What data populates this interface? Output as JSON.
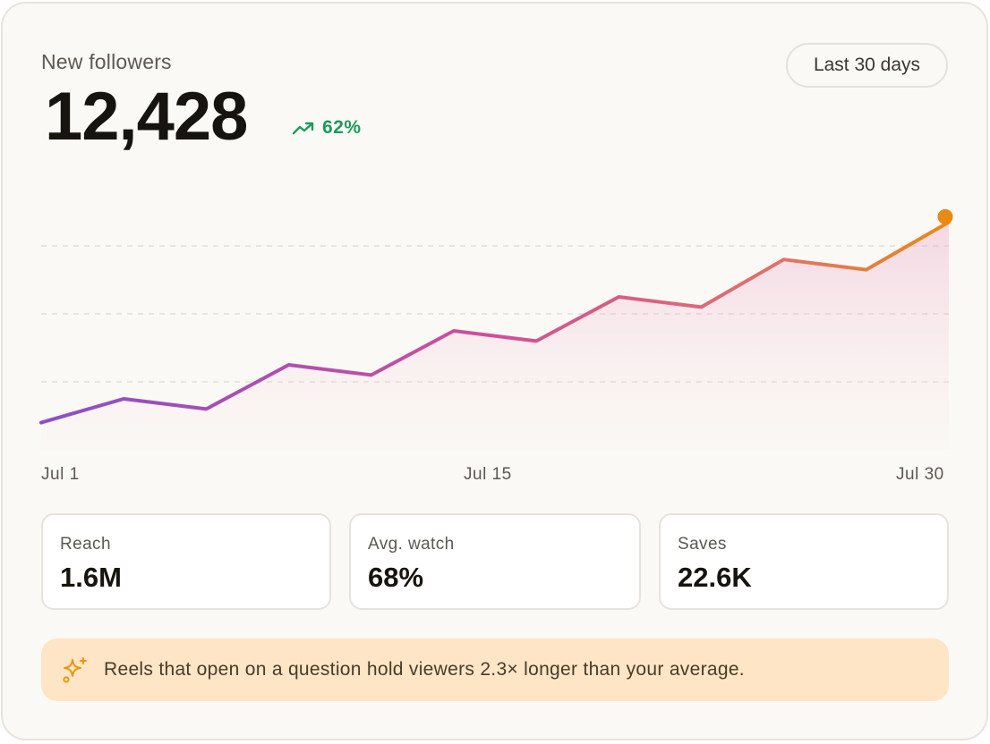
{
  "card": {
    "title": "New followers",
    "total": "12,428",
    "delta": "62%",
    "range_label": "Last 30 days"
  },
  "colors": {
    "trend_up": "#1c9a5c",
    "line_start": "#8a4fc8",
    "line_mid": "#d04f98",
    "line_end": "#e98a14",
    "insight_bg": "#fde5c6"
  },
  "chart_data": {
    "type": "line",
    "x": [
      "Jul 1",
      "",
      "",
      "",
      "",
      "",
      "",
      "",
      "",
      "",
      "",
      "Jul 30"
    ],
    "values": [
      0.8,
      1.5,
      1.2,
      2.5,
      2.2,
      3.5,
      3.2,
      4.5,
      4.2,
      5.6,
      5.3,
      6.7
    ],
    "xticks": [
      "Jul 1",
      "Jul 15",
      "Jul 30"
    ],
    "ylim": [
      0,
      8
    ],
    "grid": true,
    "gridline_values": [
      2,
      4,
      6
    ],
    "area_fill": true,
    "last_point_marker": true
  },
  "stats": [
    {
      "label": "Reach",
      "value": "1.6M"
    },
    {
      "label": "Avg. watch",
      "value": "68%"
    },
    {
      "label": "Saves",
      "value": "22.6K"
    }
  ],
  "insight": {
    "icon": "sparkles-icon",
    "text": "Reels that open on a question hold viewers 2.3× longer than your average."
  }
}
